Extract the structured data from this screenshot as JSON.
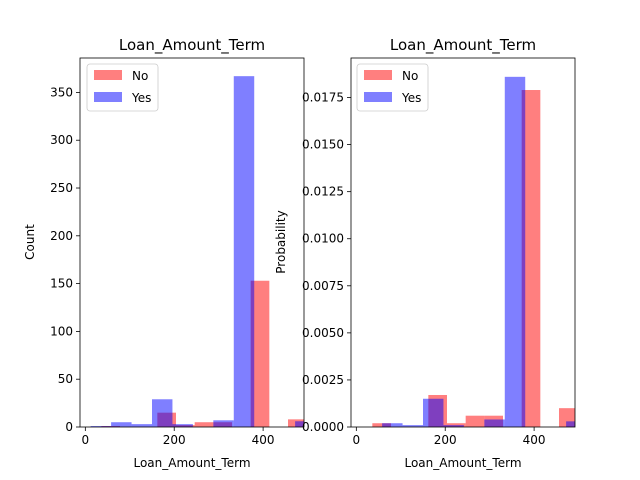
{
  "chart_data": [
    {
      "type": "bar",
      "title": "Loan_Amount_Term",
      "xlabel": "Loan_Amount_Term",
      "ylabel": "Count",
      "xlim": [
        -12,
        492
      ],
      "ylim": [
        0,
        386
      ],
      "xticks": [
        0,
        200,
        400
      ],
      "yticks": [
        0,
        50,
        100,
        150,
        200,
        250,
        300,
        350
      ],
      "ytick_labels": [
        "0",
        "50",
        "100",
        "150",
        "200",
        "250",
        "300",
        "350"
      ],
      "legend": {
        "placement": "top-left",
        "entries": [
          "No",
          "Yes"
        ]
      },
      "series": [
        {
          "name": "No",
          "color": "#ff0000",
          "opacity": 0.5,
          "bins": [
            [
              36,
              78,
              1
            ],
            [
              78,
              120,
              0
            ],
            [
              120,
              162,
              0
            ],
            [
              162,
              204,
              15
            ],
            [
              204,
              246,
              2
            ],
            [
              246,
              288,
              5
            ],
            [
              288,
              330,
              5
            ],
            [
              330,
              372,
              0
            ],
            [
              372,
              414,
              153
            ],
            [
              414,
              456,
              0
            ],
            [
              456,
              498,
              8
            ]
          ]
        },
        {
          "name": "Yes",
          "color": "#0000ff",
          "opacity": 0.5,
          "bins": [
            [
              12,
              58,
              1
            ],
            [
              58,
              104,
              5
            ],
            [
              104,
              150,
              3
            ],
            [
              150,
              196,
              29
            ],
            [
              196,
              242,
              3
            ],
            [
              242,
              288,
              0
            ],
            [
              288,
              334,
              7
            ],
            [
              334,
              380,
              367
            ],
            [
              380,
              426,
              0
            ],
            [
              426,
              472,
              0
            ],
            [
              472,
              518,
              6
            ]
          ]
        }
      ]
    },
    {
      "type": "bar",
      "title": "Loan_Amount_Term",
      "xlabel": "Loan_Amount_Term",
      "ylabel": "Probability",
      "xlim": [
        -12,
        492
      ],
      "ylim": [
        0,
        0.0196
      ],
      "xticks": [
        0,
        200,
        400
      ],
      "yticks": [
        0,
        0.0025,
        0.005,
        0.0075,
        0.01,
        0.0125,
        0.015,
        0.0175
      ],
      "ytick_labels": [
        "0.0000",
        "0.0025",
        "0.0050",
        "0.0075",
        "0.0100",
        "0.0125",
        "0.0150",
        "0.0175"
      ],
      "legend": {
        "placement": "top-left",
        "entries": [
          "No",
          "Yes"
        ]
      },
      "series": [
        {
          "name": "No",
          "color": "#ff0000",
          "opacity": 0.5,
          "bins": [
            [
              36,
              78,
              0.0002
            ],
            [
              78,
              120,
              0.0
            ],
            [
              120,
              162,
              0.0
            ],
            [
              162,
              204,
              0.0017
            ],
            [
              204,
              246,
              0.0002
            ],
            [
              246,
              288,
              0.0006
            ],
            [
              288,
              330,
              0.0006
            ],
            [
              330,
              372,
              0.0
            ],
            [
              372,
              414,
              0.0179
            ],
            [
              414,
              456,
              0.0
            ],
            [
              456,
              498,
              0.001
            ]
          ]
        },
        {
          "name": "Yes",
          "color": "#0000ff",
          "opacity": 0.5,
          "bins": [
            [
              12,
              58,
              0.0
            ],
            [
              58,
              104,
              0.0002
            ],
            [
              104,
              150,
              0.0001
            ],
            [
              150,
              196,
              0.0015
            ],
            [
              196,
              242,
              0.0001
            ],
            [
              242,
              288,
              0.0
            ],
            [
              288,
              334,
              0.0004
            ],
            [
              334,
              380,
              0.0186
            ],
            [
              380,
              426,
              0.0
            ],
            [
              426,
              472,
              0.0
            ],
            [
              472,
              518,
              0.0003
            ]
          ]
        }
      ]
    }
  ]
}
